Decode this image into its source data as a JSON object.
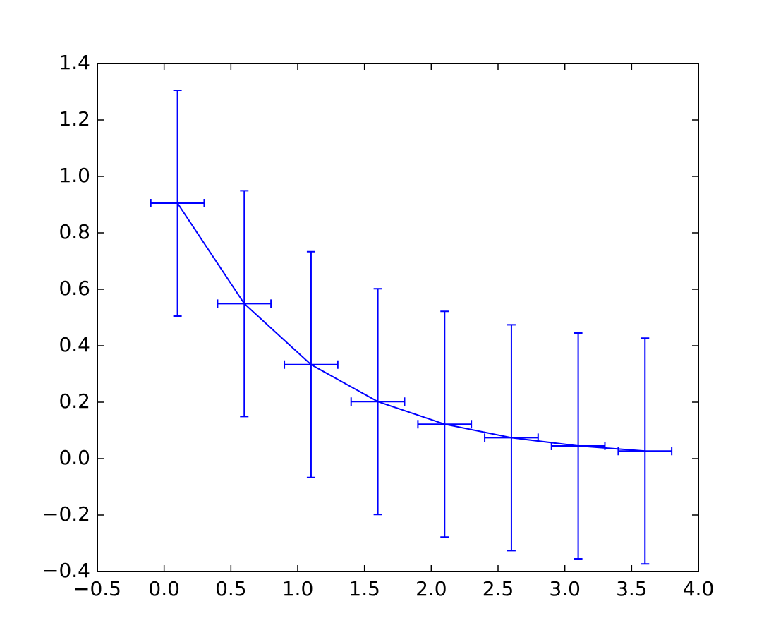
{
  "chart_data": {
    "type": "errorbar",
    "series": [
      {
        "color": "#0000ff",
        "x": [
          0.1,
          0.6,
          1.1,
          1.6,
          2.1,
          2.6,
          3.1,
          3.6
        ],
        "values": [
          0.905,
          0.549,
          0.333,
          0.202,
          0.122,
          0.074,
          0.045,
          0.027
        ],
        "yerr": 0.4,
        "xerr": 0.2
      }
    ],
    "xlim": [
      -0.5,
      4.0
    ],
    "xticks": [
      {
        "value": -0.5,
        "label": "−0.5"
      },
      {
        "value": 0,
        "label": "0.0"
      },
      0.5,
      {
        "value": 1,
        "label": "1.0"
      },
      1.5,
      {
        "value": 2,
        "label": "2.0"
      },
      2.5,
      {
        "value": 3,
        "label": "3.0"
      },
      3.5,
      {
        "value": 4,
        "label": "4.0"
      }
    ],
    "ylim": [
      -0.4,
      1.4
    ],
    "yticks": [
      {
        "value": -0.4,
        "label": "−0.4"
      },
      {
        "value": -0.2,
        "label": "−0.2"
      },
      {
        "value": 0,
        "label": "0.0"
      },
      0.2,
      0.4,
      0.6,
      0.8,
      {
        "value": 1,
        "label": "1.0"
      },
      1.2,
      1.4
    ],
    "grid": false
  }
}
